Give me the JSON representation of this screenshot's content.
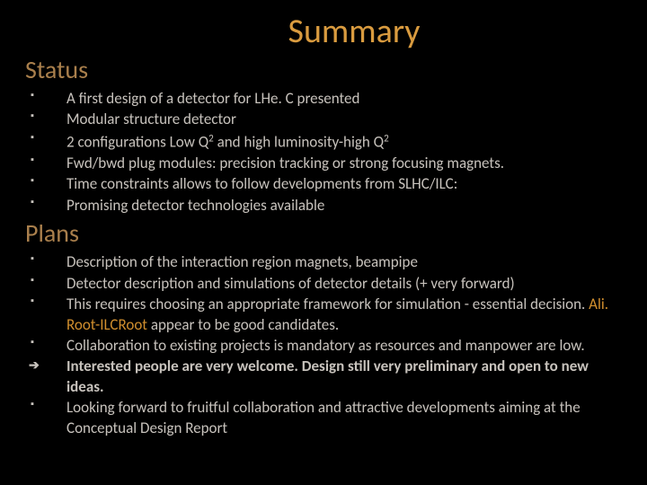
{
  "background_color": "#000000",
  "title": {
    "text": "Summary",
    "color": "#d99b3f",
    "fontsize": 38
  },
  "sections": [
    {
      "heading": "Status",
      "heading_color": "#a97f4c",
      "items": [
        {
          "marker": "square",
          "bold": false,
          "fragments": [
            {
              "text": "A first design of a detector for LHe. C presented"
            }
          ]
        },
        {
          "marker": "square",
          "bold": false,
          "fragments": [
            {
              "text": "Modular structure detector"
            }
          ]
        },
        {
          "marker": "square",
          "bold": false,
          "fragments": [
            {
              "text": "2 configurations Low Q"
            },
            {
              "text": "2",
              "sup": true
            },
            {
              "text": " and  high luminosity-high Q"
            },
            {
              "text": "2",
              "sup": true
            }
          ]
        },
        {
          "marker": "square",
          "bold": false,
          "fragments": [
            {
              "text": "Fwd/bwd plug modules: precision tracking or strong focusing magnets."
            }
          ]
        },
        {
          "marker": "square",
          "bold": false,
          "fragments": [
            {
              "text": "Time constraints allows to follow developments from SLHC/ILC:"
            }
          ]
        },
        {
          "marker": "square",
          "bold": false,
          "fragments": [
            {
              "text": "Promising detector technologies available"
            }
          ]
        }
      ]
    },
    {
      "heading": "Plans",
      "heading_color": "#a97f4c",
      "items": [
        {
          "marker": "square",
          "bold": false,
          "fragments": [
            {
              "text": "Description of the interaction region magnets, beampipe"
            }
          ]
        },
        {
          "marker": "square",
          "bold": false,
          "fragments": [
            {
              "text": "Detector description and simulations of detector details (+ very forward)"
            }
          ]
        },
        {
          "marker": "square",
          "bold": false,
          "fragments": [
            {
              "text": "This requires choosing an appropriate framework for simulation - essential decision. "
            },
            {
              "text": "Ali. Root-ILCRoot",
              "highlight": true
            },
            {
              "text": " appear to be good candidates."
            }
          ]
        },
        {
          "marker": "square",
          "bold": false,
          "fragments": [
            {
              "text": "Collaboration to existing projects is mandatory as resources and manpower are low."
            }
          ]
        },
        {
          "marker": "arrow",
          "bold": true,
          "fragments": [
            {
              "text": "Interested people are very welcome. Design still very preliminary and open to new ideas."
            }
          ]
        },
        {
          "marker": "square",
          "bold": false,
          "fragments": [
            {
              "text": "Looking forward to fruitful collaboration and attractive developments aiming at the Conceptual Design Report"
            }
          ]
        }
      ]
    }
  ],
  "bullet_text_color": "#c7c2bc",
  "highlight_color": "#d18f2e",
  "bullet_fontsize": 17
}
